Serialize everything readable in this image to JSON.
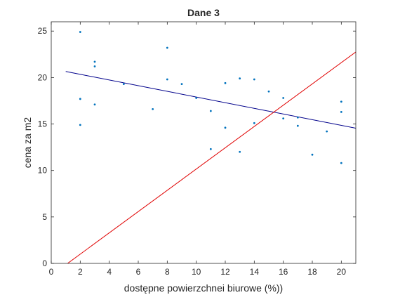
{
  "chart_data": {
    "type": "scatter",
    "title": "Dane 3",
    "xlabel": "dostępne powierzchnei biurowe (%))",
    "ylabel": "cena za m2",
    "xlim": [
      0,
      21
    ],
    "ylim": [
      0,
      26
    ],
    "xticks": [
      "0",
      "2",
      "4",
      "6",
      "8",
      "10",
      "12",
      "14",
      "16",
      "18",
      "20"
    ],
    "yticks": [
      "0",
      "5",
      "10",
      "15",
      "20",
      "25"
    ],
    "grid": false,
    "points": {
      "color": "#0072BD",
      "x": [
        2,
        2,
        2,
        3,
        3,
        3,
        5,
        7,
        8,
        8,
        9,
        10,
        11,
        11,
        12,
        12,
        13,
        13,
        14,
        14,
        15,
        16,
        16,
        17,
        17,
        18,
        19,
        20,
        20,
        20
      ],
      "y": [
        24.9,
        17.7,
        14.9,
        21.7,
        21.2,
        17.1,
        19.3,
        16.6,
        23.2,
        19.8,
        19.3,
        17.8,
        16.4,
        12.3,
        19.4,
        14.6,
        19.9,
        12.0,
        19.8,
        15.1,
        18.5,
        17.8,
        15.6,
        15.7,
        14.8,
        11.7,
        14.2,
        17.4,
        16.3,
        10.8
      ]
    },
    "lines": [
      {
        "color": "#00008B",
        "x": [
          1,
          21
        ],
        "y": [
          20.65,
          14.55
        ]
      },
      {
        "color": "#E00000",
        "x": [
          1,
          21
        ],
        "y": [
          -0.15,
          22.75
        ]
      }
    ]
  }
}
